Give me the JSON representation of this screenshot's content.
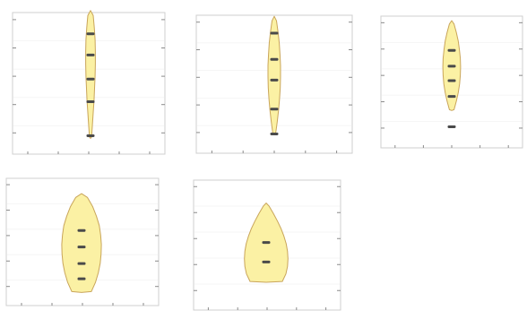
{
  "chart_data": [
    {
      "type": "violin",
      "fill_color": "#fbf1a4",
      "outline_color": "#c9a55a",
      "marker_color": "#4a4a4a",
      "ylim": [
        0,
        100
      ],
      "violin_extent": [
        12,
        98
      ],
      "width_profile": [
        0.04,
        0.07,
        0.1,
        0.13,
        0.15,
        0.17,
        0.18,
        0.18,
        0.17,
        0.14,
        0.1
      ],
      "marker_values": [
        13,
        37,
        53,
        70,
        85
      ],
      "grid": true
    },
    {
      "type": "violin",
      "fill_color": "#fbf1a4",
      "outline_color": "#c9a55a",
      "marker_color": "#4a4a4a",
      "ylim": [
        0,
        100
      ],
      "violin_extent": [
        15,
        96
      ],
      "width_profile": [
        0.06,
        0.12,
        0.17,
        0.21,
        0.24,
        0.25,
        0.25,
        0.23,
        0.2,
        0.15,
        0.09
      ],
      "marker_values": [
        14,
        32,
        53,
        68,
        87
      ],
      "grid": true
    },
    {
      "type": "violin",
      "fill_color": "#fbf1a4",
      "outline_color": "#c9a55a",
      "marker_color": "#4a4a4a",
      "ylim": [
        0,
        100
      ],
      "violin_extent": [
        29,
        94
      ],
      "width_profile": [
        0.1,
        0.2,
        0.28,
        0.34,
        0.37,
        0.38,
        0.37,
        0.33,
        0.28,
        0.2,
        0.1
      ],
      "marker_values": [
        16,
        39,
        51,
        62,
        74
      ],
      "grid": true
    },
    {
      "type": "violin",
      "fill_color": "#fbf1a4",
      "outline_color": "#c9a55a",
      "marker_color": "#4a4a4a",
      "ylim": [
        0,
        100
      ],
      "violin_extent": [
        11,
        85
      ],
      "width_profile": [
        0.42,
        0.6,
        0.72,
        0.8,
        0.84,
        0.85,
        0.82,
        0.76,
        0.64,
        0.48,
        0.25
      ],
      "marker_values": [
        21,
        33,
        46,
        59
      ],
      "grid": true
    },
    {
      "type": "violin",
      "fill_color": "#fbf1a4",
      "outline_color": "#c9a55a",
      "marker_color": "#4a4a4a",
      "ylim": [
        0,
        100
      ],
      "violin_extent": [
        22,
        80
      ],
      "width_profile": [
        1.0,
        1.22,
        1.32,
        1.35,
        1.32,
        1.24,
        1.1,
        0.92,
        0.7,
        0.45,
        0.18
      ],
      "marker_values": [
        37,
        52
      ],
      "grid": true
    }
  ]
}
